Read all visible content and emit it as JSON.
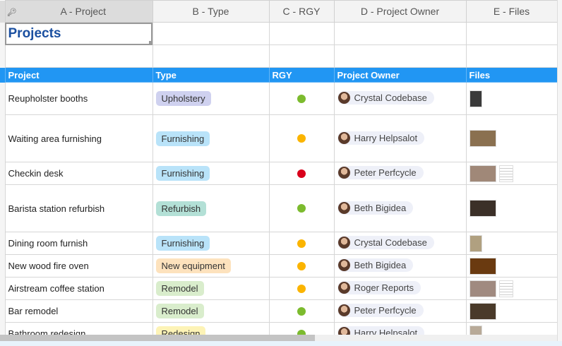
{
  "columns": [
    "A - Project",
    "B - Type",
    "C - RGY",
    "D - Project Owner",
    "E - Files"
  ],
  "sheet_title": "Projects",
  "headers": [
    "Project",
    "Type",
    "RGY",
    "Project Owner",
    "Files"
  ],
  "colors": {
    "header_bg": "#2196f3",
    "green": "#7cbb2e",
    "yellow": "#fbb400",
    "red": "#d9001b"
  },
  "type_colors": {
    "Upholstery": "#cfd1ef",
    "Furnishing": "#b9e3f9",
    "Refurbish": "#b3e0d6",
    "New equipment": "#fde2bd",
    "Remodel": "#d9edcc",
    "Redesign": "#fdf3b6"
  },
  "rows": [
    {
      "project": "Reupholster booths",
      "type": "Upholstery",
      "rgy": "green",
      "owner": "Crystal Codebase",
      "files": [
        "image"
      ]
    },
    {
      "project": "Waiting area furnishing",
      "type": "Furnishing",
      "rgy": "yellow",
      "owner": "Harry Helpsalot",
      "files": [
        "image"
      ]
    },
    {
      "project": "Checkin desk",
      "type": "Furnishing",
      "rgy": "red",
      "owner": "Peter Perfcycle",
      "files": [
        "image",
        "document"
      ]
    },
    {
      "project": "Barista station refurbish",
      "type": "Refurbish",
      "rgy": "green",
      "owner": "Beth Bigidea",
      "files": [
        "image"
      ]
    },
    {
      "project": "Dining room furnish",
      "type": "Furnishing",
      "rgy": "yellow",
      "owner": "Crystal Codebase",
      "files": [
        "image"
      ]
    },
    {
      "project": "New wood fire oven",
      "type": "New equipment",
      "rgy": "yellow",
      "owner": "Beth Bigidea",
      "files": [
        "image"
      ]
    },
    {
      "project": "Airstream coffee station",
      "type": "Remodel",
      "rgy": "yellow",
      "owner": "Roger Reports",
      "files": [
        "image",
        "document"
      ]
    },
    {
      "project": "Bar remodel",
      "type": "Remodel",
      "rgy": "green",
      "owner": "Peter Perfcycle",
      "files": [
        "image"
      ]
    },
    {
      "project": "Bathroom redesign",
      "type": "Redesign",
      "rgy": "green",
      "owner": "Harry Helpsalot",
      "files": [
        "image"
      ]
    }
  ]
}
